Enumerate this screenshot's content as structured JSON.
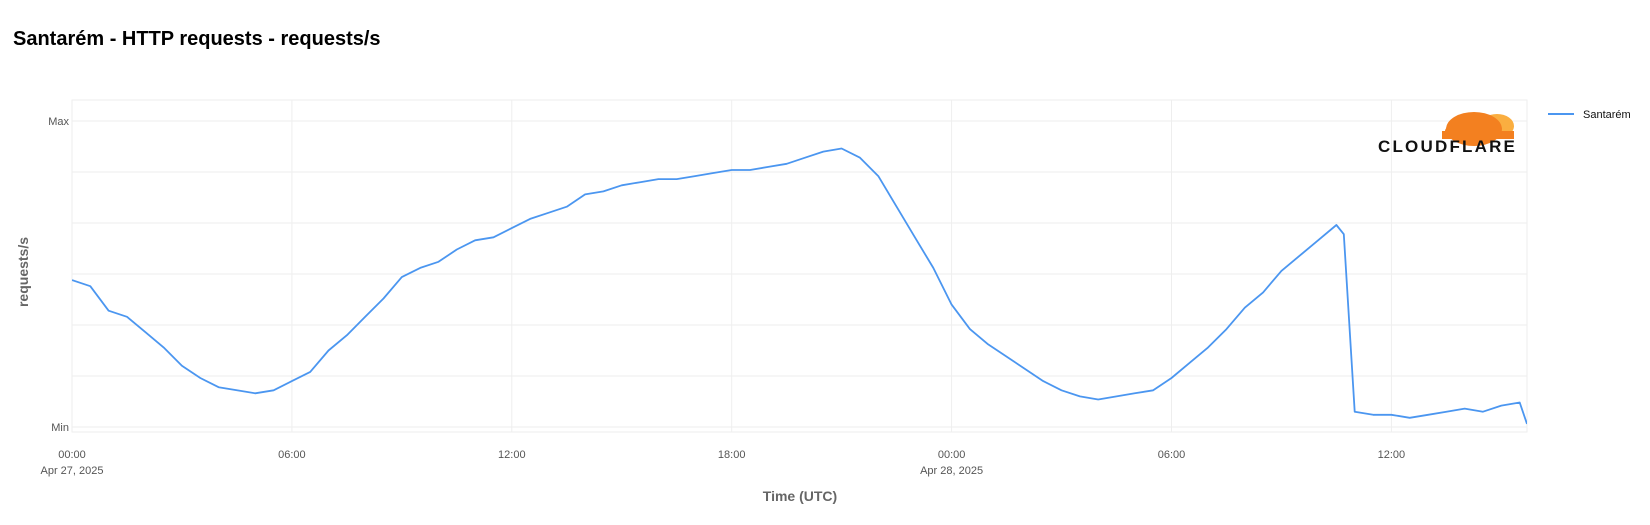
{
  "title": "Santarém - HTTP requests - requests/s",
  "brand": {
    "logo_text": "CLOUDFLARE",
    "cloud_colors": [
      "#f38020",
      "#faae40"
    ]
  },
  "colors": {
    "series": "#4b96f0",
    "grid": "#eeeeee"
  },
  "chart_data": {
    "type": "line",
    "xlabel": "Time (UTC)",
    "ylabel": "requests/s",
    "y_ticks": [
      "Min",
      "Max"
    ],
    "x_ticks": [
      {
        "label": "00:00",
        "sublabel": "Apr 27, 2025"
      },
      {
        "label": "06:00",
        "sublabel": ""
      },
      {
        "label": "12:00",
        "sublabel": ""
      },
      {
        "label": "18:00",
        "sublabel": ""
      },
      {
        "label": "00:00",
        "sublabel": "Apr 28, 2025"
      },
      {
        "label": "06:00",
        "sublabel": ""
      },
      {
        "label": "12:00",
        "sublabel": ""
      }
    ],
    "x_range_hours": [
      0,
      39.7
    ],
    "ylim": [
      0,
      1
    ],
    "grid": true,
    "legend_position": "top-right",
    "series": [
      {
        "name": "Santarém",
        "x": [
          0,
          0.5,
          1,
          1.5,
          2,
          2.5,
          3,
          3.5,
          4,
          4.5,
          5,
          5.5,
          6,
          6.5,
          7,
          7.5,
          8,
          8.5,
          9,
          9.5,
          10,
          10.5,
          11,
          11.5,
          12,
          12.5,
          13,
          13.5,
          14,
          14.5,
          15,
          15.5,
          16,
          16.5,
          17,
          17.5,
          18,
          18.5,
          19,
          19.5,
          20,
          20.5,
          21,
          21.5,
          22,
          22.5,
          23,
          23.5,
          24,
          24.5,
          25,
          25.5,
          26,
          26.5,
          27,
          27.5,
          28,
          28.5,
          29,
          29.5,
          30,
          30.5,
          31,
          31.5,
          32,
          32.5,
          33,
          33.5,
          34,
          34.5,
          34.7,
          35,
          35.5,
          36,
          36.5,
          37,
          37.5,
          38,
          38.5,
          39,
          39.5,
          39.7
        ],
        "values": [
          0.48,
          0.46,
          0.38,
          0.36,
          0.31,
          0.26,
          0.2,
          0.16,
          0.13,
          0.12,
          0.11,
          0.12,
          0.15,
          0.18,
          0.25,
          0.3,
          0.36,
          0.42,
          0.49,
          0.52,
          0.54,
          0.58,
          0.61,
          0.62,
          0.65,
          0.68,
          0.7,
          0.72,
          0.76,
          0.77,
          0.79,
          0.8,
          0.81,
          0.81,
          0.82,
          0.83,
          0.84,
          0.84,
          0.85,
          0.86,
          0.88,
          0.9,
          0.91,
          0.88,
          0.82,
          0.72,
          0.62,
          0.52,
          0.4,
          0.32,
          0.27,
          0.23,
          0.19,
          0.15,
          0.12,
          0.1,
          0.09,
          0.1,
          0.11,
          0.12,
          0.16,
          0.21,
          0.26,
          0.32,
          0.39,
          0.44,
          0.51,
          0.56,
          0.61,
          0.66,
          0.63,
          0.05,
          0.04,
          0.04,
          0.03,
          0.04,
          0.05,
          0.06,
          0.05,
          0.07,
          0.08,
          0.01
        ]
      }
    ]
  }
}
